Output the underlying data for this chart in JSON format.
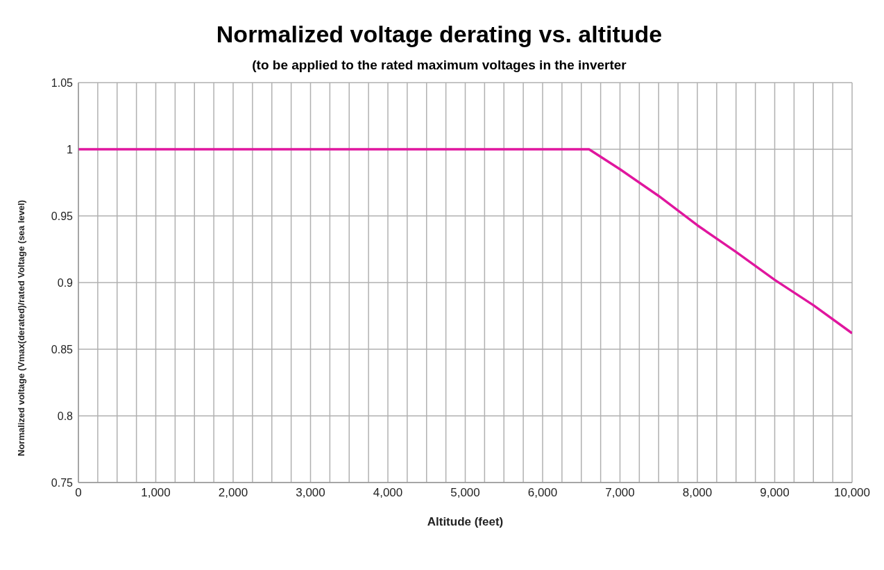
{
  "chart_data": {
    "type": "line",
    "title": "Normalized voltage derating vs. altitude",
    "subtitle": "(to be applied to the rated maximum voltages in the inverter",
    "xlabel": "Altitude (feet)",
    "ylabel": "Normalized voltage  (Vmax(derated)/rated Voltage  (sea level)",
    "x": [
      0,
      6600,
      7000,
      7500,
      8000,
      8500,
      9000,
      9500,
      10000
    ],
    "series": [
      {
        "color": "#e0169e",
        "values": [
          1,
          1,
          0.985,
          0.965,
          0.943,
          0.923,
          0.902,
          0.883,
          0.862
        ]
      }
    ],
    "xlim": [
      0,
      10000
    ],
    "xticks": [
      0,
      {
        "value": 250,
        "label": null
      },
      {
        "value": 500,
        "label": null
      },
      {
        "value": 750,
        "label": null
      },
      {
        "value": 1000,
        "label": "1,000"
      },
      {
        "value": 1250,
        "label": null
      },
      {
        "value": 1500,
        "label": null
      },
      {
        "value": 1750,
        "label": null
      },
      {
        "value": 2000,
        "label": "2,000"
      },
      {
        "value": 2250,
        "label": null
      },
      {
        "value": 2500,
        "label": null
      },
      {
        "value": 2750,
        "label": null
      },
      {
        "value": 3000,
        "label": "3,000"
      },
      {
        "value": 3250,
        "label": null
      },
      {
        "value": 3500,
        "label": null
      },
      {
        "value": 3750,
        "label": null
      },
      {
        "value": 4000,
        "label": "4,000"
      },
      {
        "value": 4250,
        "label": null
      },
      {
        "value": 4500,
        "label": null
      },
      {
        "value": 4750,
        "label": null
      },
      {
        "value": 5000,
        "label": "5,000"
      },
      {
        "value": 5250,
        "label": null
      },
      {
        "value": 5500,
        "label": null
      },
      {
        "value": 5750,
        "label": null
      },
      {
        "value": 6000,
        "label": "6,000"
      },
      {
        "value": 6250,
        "label": null
      },
      {
        "value": 6500,
        "label": null
      },
      {
        "value": 6750,
        "label": null
      },
      {
        "value": 7000,
        "label": "7,000"
      },
      {
        "value": 7250,
        "label": null
      },
      {
        "value": 7500,
        "label": null
      },
      {
        "value": 7750,
        "label": null
      },
      {
        "value": 8000,
        "label": "8,000"
      },
      {
        "value": 8250,
        "label": null
      },
      {
        "value": 8500,
        "label": null
      },
      {
        "value": 8750,
        "label": null
      },
      {
        "value": 9000,
        "label": "9,000"
      },
      {
        "value": 9250,
        "label": null
      },
      {
        "value": 9500,
        "label": null
      },
      {
        "value": 9750,
        "label": null
      },
      {
        "value": 10000,
        "label": "10,000"
      }
    ],
    "ylim": [
      0.75,
      1.05
    ],
    "yticks": [
      0.75,
      0.8,
      0.85,
      0.9,
      0.95,
      1,
      1.05
    ],
    "grid": true,
    "legend": false,
    "marker": "none",
    "line_style": "solid"
  }
}
